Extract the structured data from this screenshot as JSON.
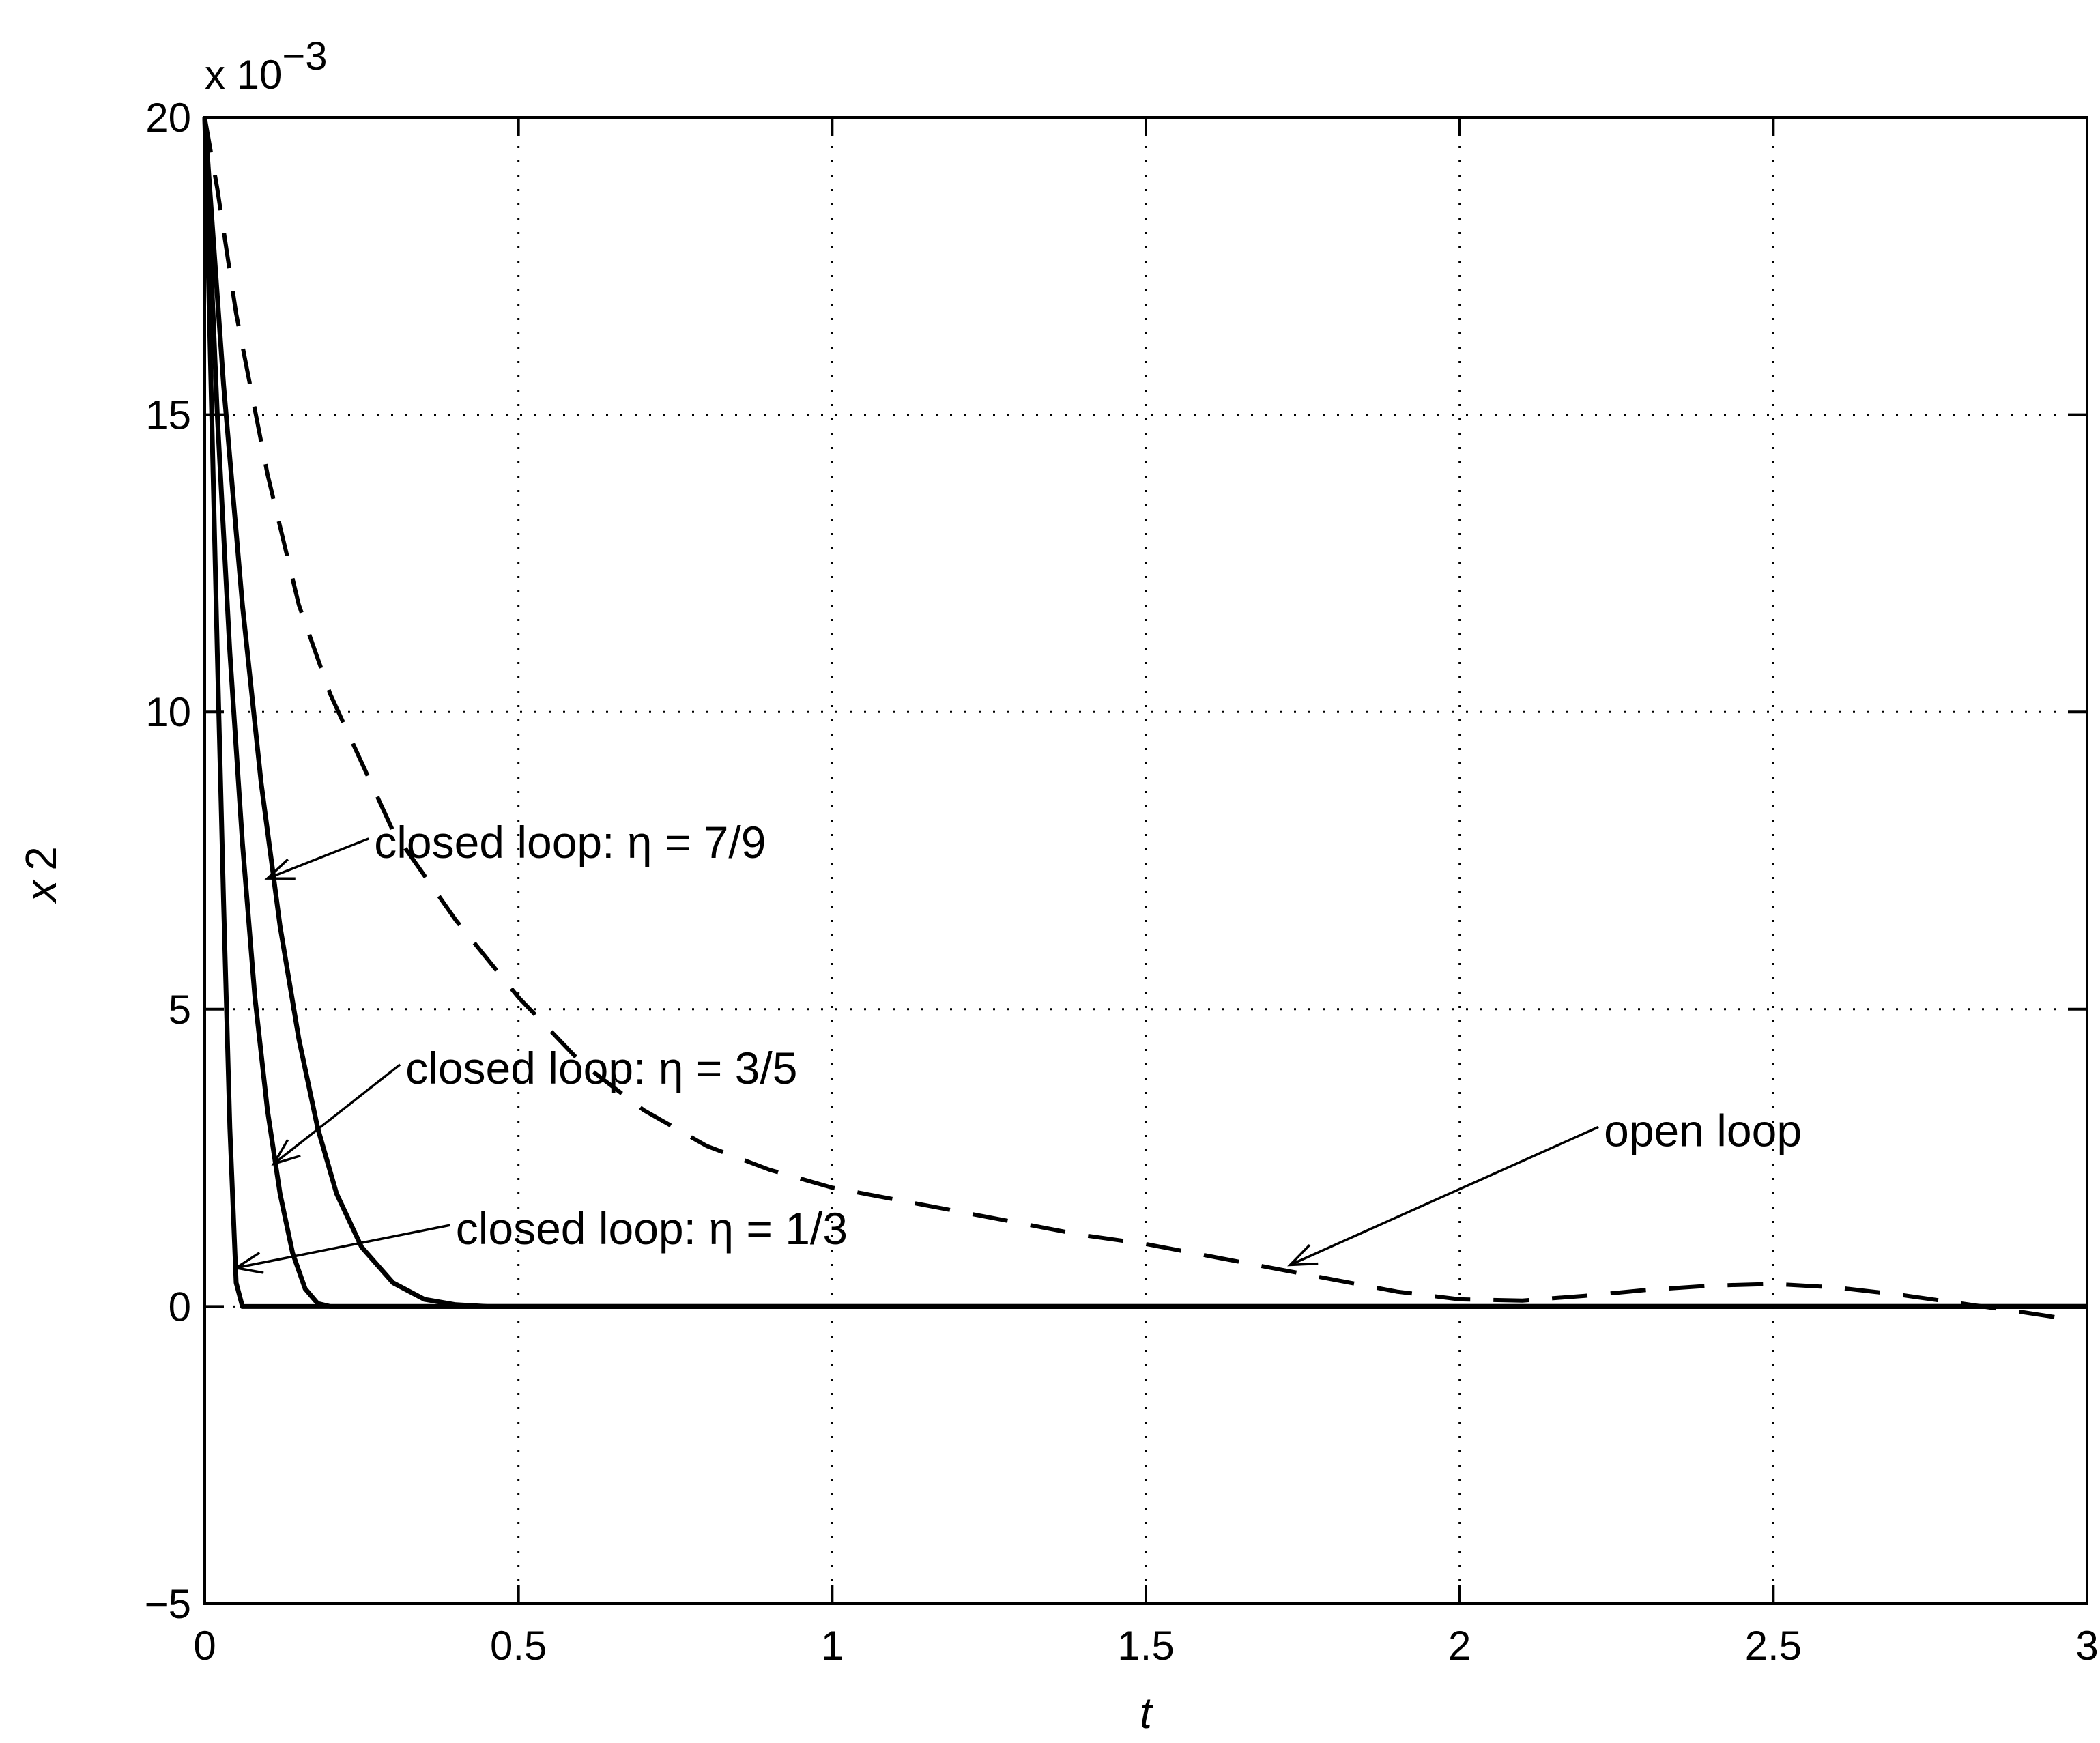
{
  "chart_data": {
    "type": "line",
    "xlabel": "t",
    "ylabel_base": "x",
    "ylabel_sub": "2",
    "y_multiplier_base": "x 10",
    "y_multiplier_exp": "−3",
    "xlim": [
      0,
      3
    ],
    "ylim": [
      -5,
      20
    ],
    "y_scale_note": "y values in units of 1e-3",
    "grid": true,
    "grid_style": "dotted",
    "x_ticks": [
      0,
      0.5,
      1,
      1.5,
      2,
      2.5,
      3
    ],
    "x_tick_labels": [
      "0",
      "0.5",
      "1",
      "1.5",
      "2",
      "2.5",
      "3"
    ],
    "y_ticks": [
      -5,
      0,
      5,
      10,
      15,
      20
    ],
    "y_tick_labels": [
      "−5",
      "0",
      "5",
      "10",
      "15",
      "20"
    ],
    "series": [
      {
        "style": "dashed",
        "x": [
          0,
          0.02,
          0.05,
          0.1,
          0.15,
          0.2,
          0.3,
          0.4,
          0.5,
          0.6,
          0.7,
          0.8,
          0.9,
          1.0,
          1.1,
          1.2,
          1.3,
          1.4,
          1.5,
          1.6,
          1.7,
          1.8,
          1.9,
          2.0,
          2.1,
          2.2,
          2.3,
          2.4,
          2.5,
          2.6,
          2.7,
          2.8,
          2.9,
          2.95
        ],
        "y": [
          20,
          18.8,
          16.7,
          14.0,
          11.8,
          10.3,
          8.0,
          6.5,
          5.2,
          4.1,
          3.3,
          2.7,
          2.3,
          2.0,
          1.8,
          1.6,
          1.4,
          1.2,
          1.05,
          0.85,
          0.65,
          0.45,
          0.25,
          0.12,
          0.1,
          0.18,
          0.28,
          0.35,
          0.38,
          0.32,
          0.2,
          0.05,
          -0.1,
          -0.18
        ]
      },
      {
        "style": "solid",
        "x": [
          0,
          0.01,
          0.02,
          0.03,
          0.04,
          0.05,
          0.06,
          3
        ],
        "y": [
          20,
          15.5,
          11.0,
          6.8,
          3.0,
          0.4,
          0,
          0
        ]
      },
      {
        "style": "solid",
        "x": [
          0,
          0.02,
          0.04,
          0.06,
          0.08,
          0.1,
          0.12,
          0.14,
          0.16,
          0.18,
          0.2,
          3
        ],
        "y": [
          20,
          15.0,
          11.0,
          7.8,
          5.2,
          3.3,
          1.9,
          0.9,
          0.3,
          0.05,
          0,
          0
        ]
      },
      {
        "style": "solid",
        "x": [
          0,
          0.03,
          0.06,
          0.09,
          0.12,
          0.15,
          0.18,
          0.21,
          0.25,
          0.3,
          0.35,
          0.4,
          0.45,
          0.5,
          3
        ],
        "y": [
          20,
          15.5,
          11.8,
          8.8,
          6.4,
          4.5,
          3.0,
          1.9,
          1.0,
          0.4,
          0.12,
          0.03,
          0,
          0,
          0
        ]
      }
    ],
    "annotations": [
      {
        "text": "closed loop: η = 7/9",
        "text_x": 0.27,
        "text_y": 7.8,
        "arrow_x": 0.1,
        "arrow_y": 7.2
      },
      {
        "text": "closed loop: η = 3/5",
        "text_x": 0.32,
        "text_y": 4.0,
        "arrow_x": 0.11,
        "arrow_y": 2.4
      },
      {
        "text": "closed loop: η = 1/3",
        "text_x": 0.4,
        "text_y": 1.3,
        "arrow_x": 0.05,
        "arrow_y": 0.65
      },
      {
        "text": "open loop",
        "text_x": 2.23,
        "text_y": 2.95,
        "arrow_x": 1.73,
        "arrow_y": 0.7
      }
    ]
  }
}
